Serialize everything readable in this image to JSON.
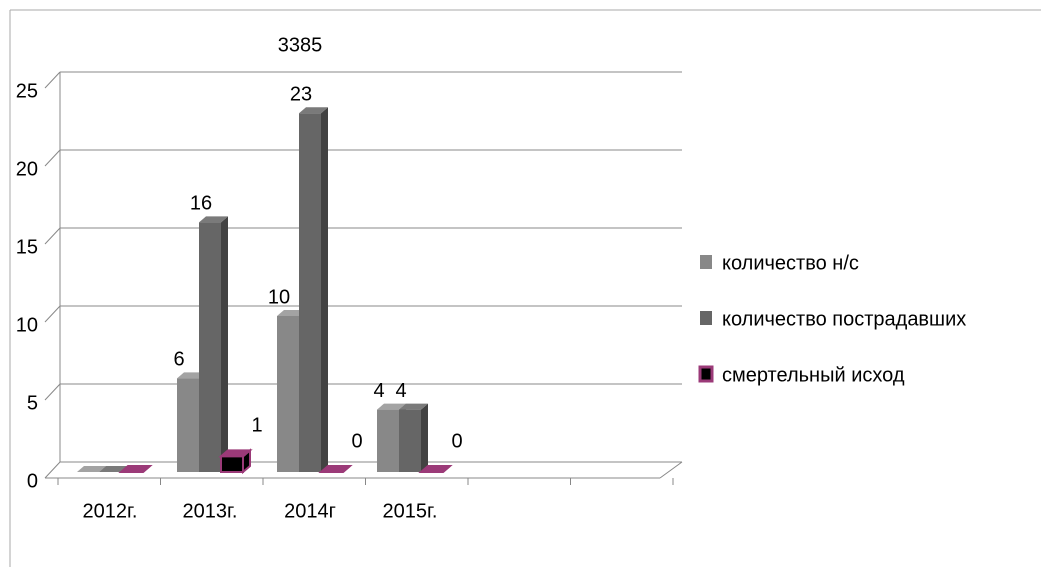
{
  "chart_data": {
    "type": "bar3d",
    "annotation": "3385",
    "categories": [
      "2012г.",
      "2013г.",
      "2014г",
      "2015г.",
      null,
      null
    ],
    "series": [
      {
        "name": "количество н/с",
        "color": "#888888",
        "values": [
          null,
          6,
          10,
          4,
          null,
          null
        ]
      },
      {
        "name": "количество пострадавших",
        "color": "#666666",
        "values": [
          null,
          16,
          23,
          4,
          null,
          null
        ]
      },
      {
        "name": "смертельный исход",
        "color": "#000000",
        "edge": "#9b3a78",
        "values": [
          null,
          1,
          0,
          0,
          null,
          null
        ]
      }
    ],
    "ylim": [
      0,
      25
    ],
    "yticks": [
      0,
      5,
      10,
      15,
      20,
      25
    ],
    "grid": true,
    "legend": "right"
  }
}
